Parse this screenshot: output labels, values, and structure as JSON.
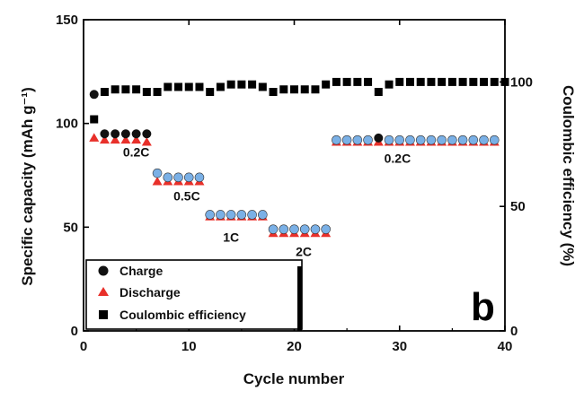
{
  "chart_data": {
    "type": "scatter",
    "panel_label": "b",
    "xlabel": "Cycle number",
    "ylabel_left": "Specific capacity (mAh g⁻¹)",
    "ylabel_right": "Coulombic efficiency (%)",
    "xlim": [
      0,
      40
    ],
    "ylim_left": [
      0,
      150
    ],
    "ylim_right": [
      0,
      125
    ],
    "x_ticks": [
      0,
      10,
      20,
      30,
      40
    ],
    "y_ticks_left": [
      0,
      50,
      100,
      150
    ],
    "y_ticks_right": [
      0,
      50,
      100
    ],
    "x_tick_labels": [
      "0",
      "10",
      "20",
      "30",
      "40"
    ],
    "y_tick_labels_left": [
      "0",
      "50",
      "100",
      "150"
    ],
    "y_tick_labels_right": [
      "0",
      "50",
      "100"
    ],
    "legend_position": "bottom-left",
    "legend": [
      "Charge",
      "Discharge",
      "Coulombic efficiency"
    ],
    "series": [
      {
        "name": "Charge",
        "marker": "circle",
        "axis": "left",
        "x": [
          1,
          2,
          3,
          4,
          5,
          6,
          7,
          8,
          9,
          10,
          11,
          12,
          13,
          14,
          15,
          16,
          17,
          18,
          19,
          20,
          21,
          22,
          23,
          24,
          25,
          26,
          27,
          28,
          29,
          30,
          31,
          32,
          33,
          34,
          35,
          36,
          37,
          38,
          39
        ],
        "values": [
          114,
          95,
          95,
          95,
          95,
          95,
          76,
          74,
          74,
          74,
          74,
          56,
          56,
          56,
          56,
          56,
          56,
          49,
          49,
          49,
          49,
          49,
          49,
          92,
          92,
          92,
          92,
          93,
          92,
          92,
          92,
          92,
          92,
          92,
          92,
          92,
          92,
          92,
          92
        ]
      },
      {
        "name": "Discharge",
        "marker": "triangle",
        "axis": "left",
        "x": [
          1,
          2,
          3,
          4,
          5,
          6,
          7,
          8,
          9,
          10,
          11,
          12,
          13,
          14,
          15,
          16,
          17,
          18,
          19,
          20,
          21,
          22,
          23,
          24,
          25,
          26,
          27,
          28,
          29,
          30,
          31,
          32,
          33,
          34,
          35,
          36,
          37,
          38,
          39
        ],
        "values": [
          93,
          92,
          92,
          92,
          92,
          91,
          72,
          72,
          72,
          72,
          72,
          55,
          55,
          55,
          55,
          55,
          55,
          47,
          47,
          47,
          47,
          47,
          47,
          91,
          91,
          91,
          91,
          91,
          91,
          91,
          91,
          91,
          91,
          91,
          91,
          91,
          91,
          91,
          91
        ]
      },
      {
        "name": "Coulombic efficiency",
        "marker": "square",
        "axis": "right",
        "x": [
          1,
          2,
          3,
          4,
          5,
          6,
          7,
          8,
          9,
          10,
          11,
          12,
          13,
          14,
          15,
          16,
          17,
          18,
          19,
          20,
          21,
          22,
          23,
          24,
          25,
          26,
          27,
          28,
          29,
          30,
          31,
          32,
          33,
          34,
          35,
          36,
          37,
          38,
          39,
          40
        ],
        "values": [
          85,
          96,
          97,
          97,
          97,
          96,
          96,
          98,
          98,
          98,
          98,
          96,
          98,
          99,
          99,
          99,
          98,
          96,
          97,
          97,
          97,
          97,
          99,
          100,
          100,
          100,
          100,
          96,
          99,
          100,
          100,
          100,
          100,
          100,
          100,
          100,
          100,
          100,
          100,
          100
        ]
      }
    ],
    "annotations": [
      {
        "text": "0.2C",
        "x": 5.0,
        "y": 84
      },
      {
        "text": "0.5C",
        "x": 9.8,
        "y": 63
      },
      {
        "text": "1C",
        "x": 14.0,
        "y": 43
      },
      {
        "text": "2C",
        "x": 20.9,
        "y": 36
      },
      {
        "text": "0.2C",
        "x": 29.8,
        "y": 81
      }
    ],
    "colors": {
      "charge": "#111111",
      "discharge": "#e8302a",
      "charge_overlay": "#7ab0e6",
      "efficiency": "#000000"
    }
  }
}
